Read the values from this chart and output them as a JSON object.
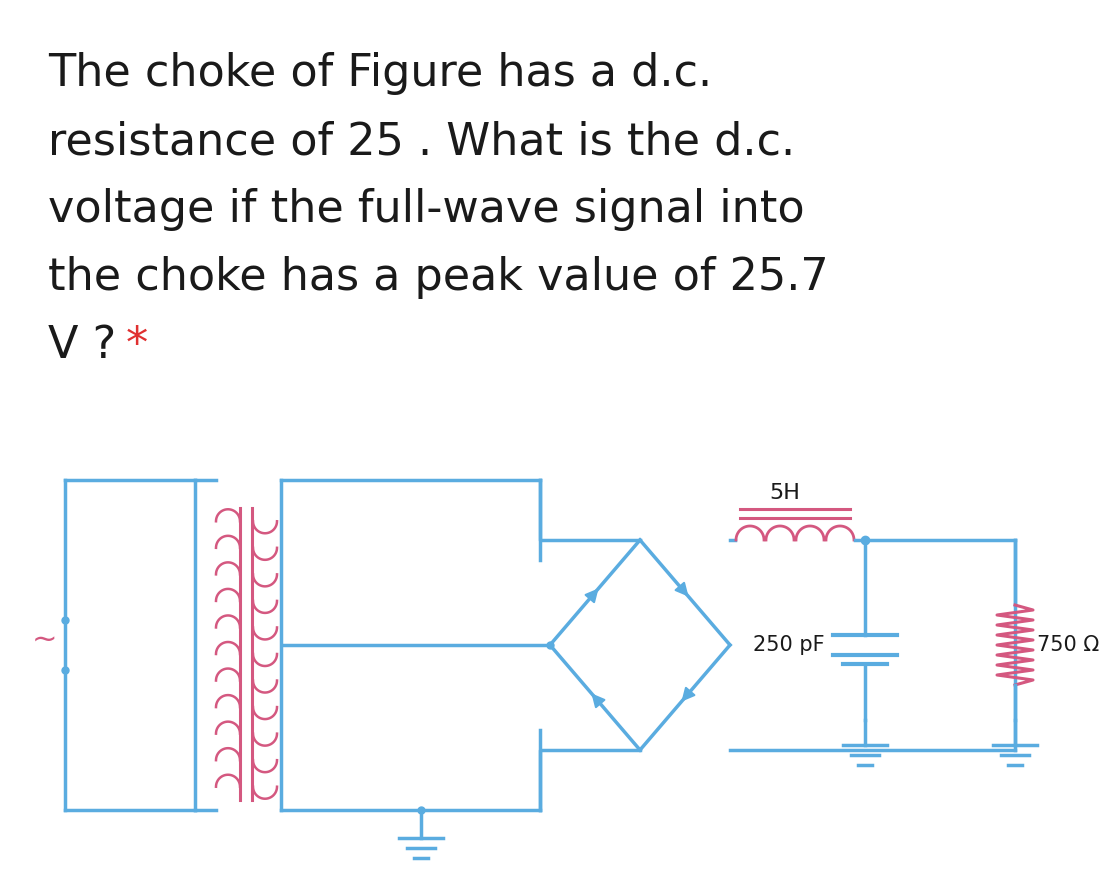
{
  "bg_color": "#ffffff",
  "text_color": "#1a1a1a",
  "circuit_color": "#5aace0",
  "pink_color": "#d45880",
  "red_star_color": "#e03030",
  "font_size_title": 28,
  "inductor_label": "5H",
  "cap_label": "250 pF",
  "res_label": "750 Ω",
  "text_lines": [
    "The choke of Figure has a d.c.",
    "resistance of 25 . What is the d.c.",
    "voltage if the full-wave signal into",
    "the choke has a peak value of 25.7"
  ],
  "last_line_main": "V ? ",
  "last_line_star": "*"
}
